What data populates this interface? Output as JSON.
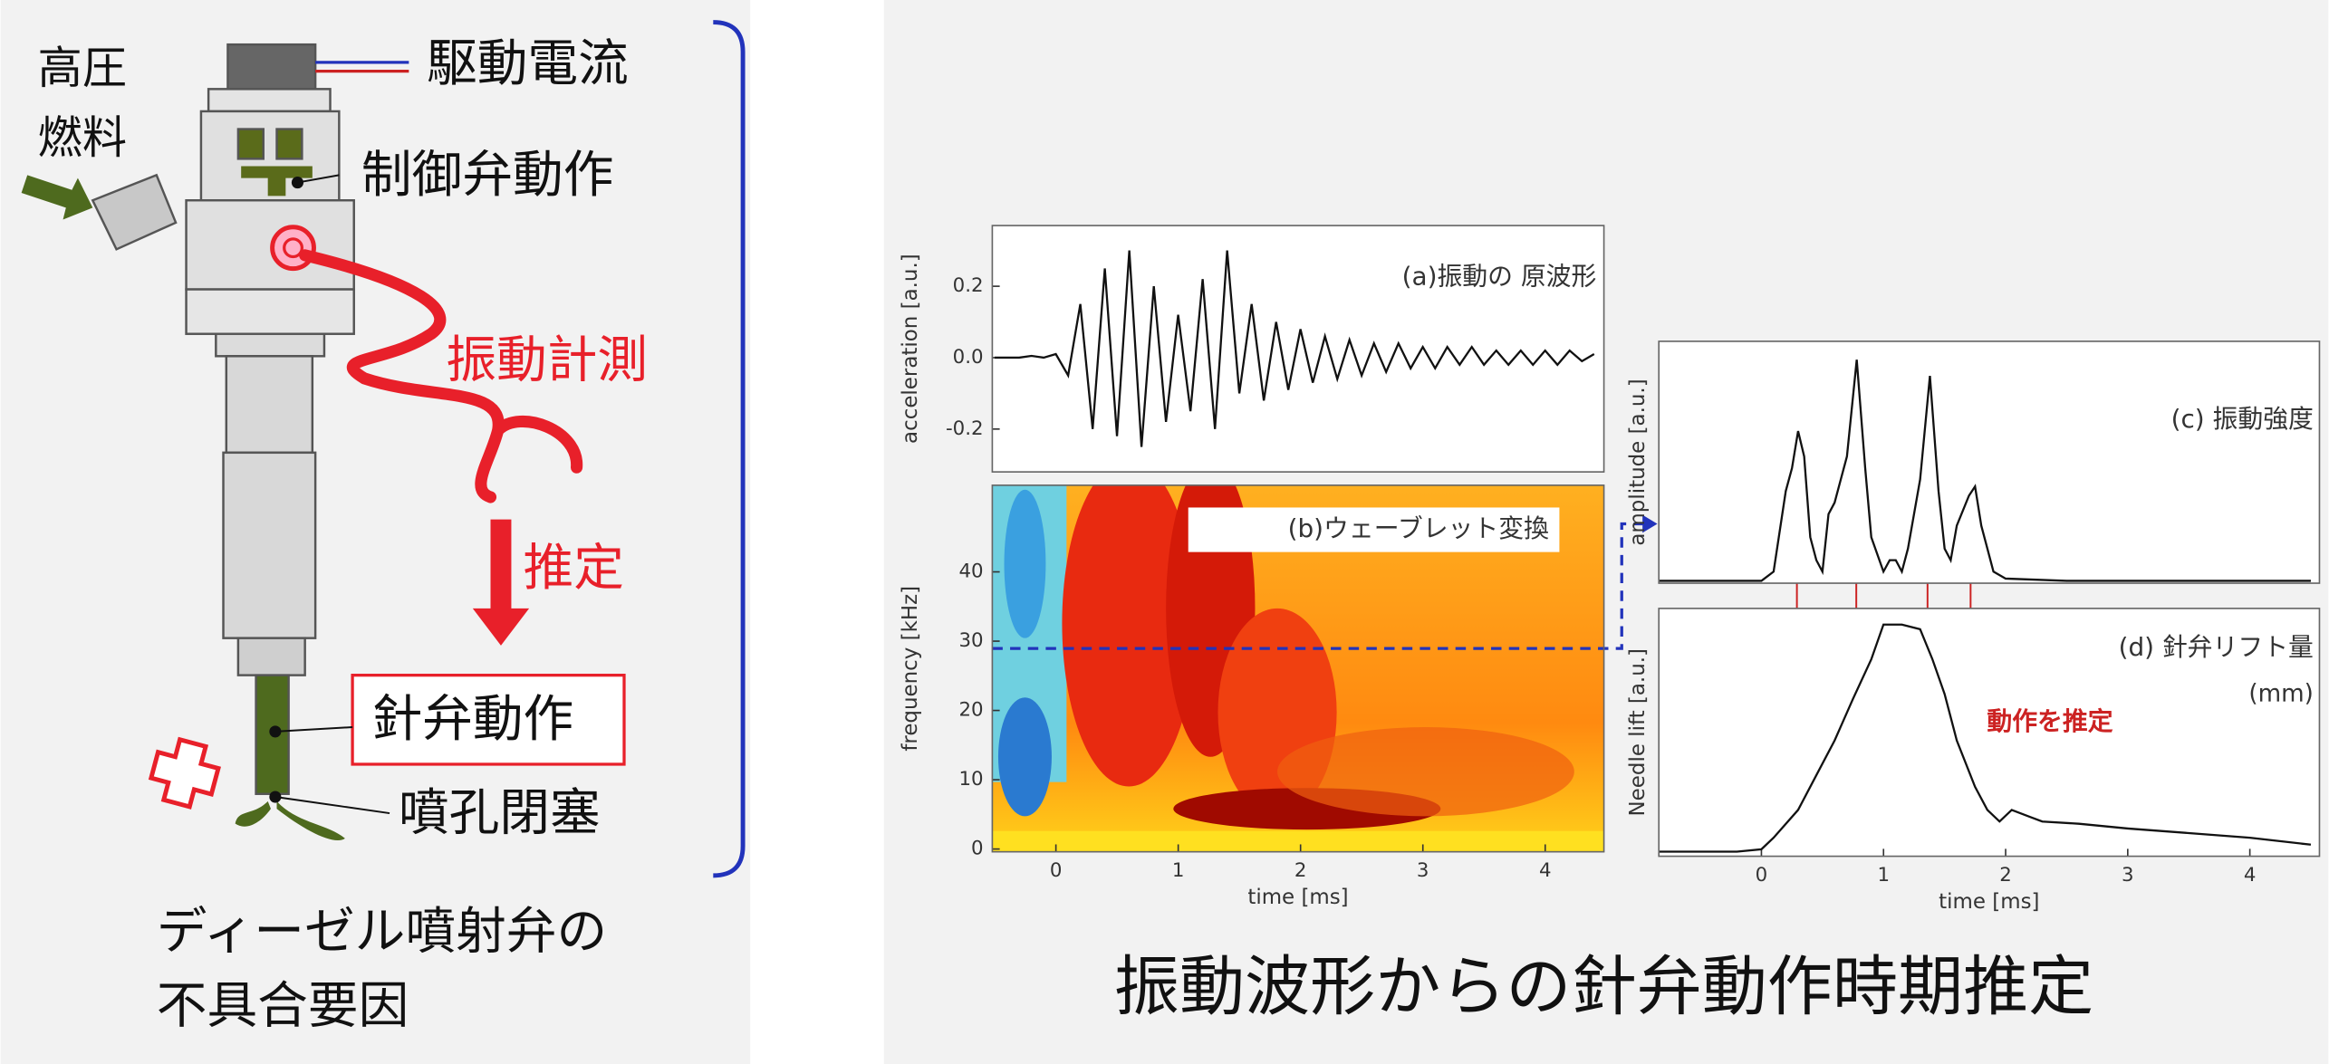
{
  "diagram": {
    "labels": {
      "fuel_1": "高圧",
      "fuel_2": "燃料",
      "drive_current": "駆動電流",
      "control_valve": "制御弁動作",
      "vibration": "振動計測",
      "estimate": "推定",
      "needle": "針弁動作",
      "nozzle": "噴孔閉塞"
    },
    "caption": [
      "ディーゼル噴射弁の",
      "不具合要因"
    ]
  },
  "figure_title": "振動波形からの針弁動作時期推定",
  "chart_data": [
    {
      "type": "line",
      "title": "(a)振動の 原波形",
      "ylabel": "acceleration [a.u.]",
      "color": "#111111",
      "xlim": [
        -0.52,
        4.48
      ],
      "ylim": [
        -0.32,
        0.37
      ],
      "yticks": [
        0.2,
        {
          "value": 0,
          "label": "0.0"
        },
        -0.2
      ],
      "x": [
        -0.5,
        -0.4,
        -0.3,
        -0.2,
        -0.1,
        0,
        0.1,
        0.2,
        0.3,
        0.4,
        0.5,
        0.6,
        0.7,
        0.8,
        0.9,
        1.0,
        1.1,
        1.2,
        1.3,
        1.4,
        1.5,
        1.6,
        1.7,
        1.8,
        1.9,
        2.0,
        2.1,
        2.2,
        2.3,
        2.4,
        2.5,
        2.6,
        2.7,
        2.8,
        2.9,
        3.0,
        3.1,
        3.2,
        3.3,
        3.4,
        3.5,
        3.6,
        3.7,
        3.8,
        3.9,
        4.0,
        4.1,
        4.2,
        4.3,
        4.4
      ],
      "values": [
        0,
        0,
        0,
        0.005,
        0,
        0.01,
        -0.05,
        0.15,
        -0.2,
        0.25,
        -0.22,
        0.3,
        -0.25,
        0.2,
        -0.18,
        0.12,
        -0.15,
        0.22,
        -0.2,
        0.3,
        -0.1,
        0.15,
        -0.12,
        0.1,
        -0.09,
        0.08,
        -0.07,
        0.06,
        -0.06,
        0.05,
        -0.05,
        0.04,
        -0.04,
        0.04,
        -0.03,
        0.03,
        -0.03,
        0.03,
        -0.02,
        0.03,
        -0.02,
        0.02,
        -0.02,
        0.02,
        -0.02,
        0.02,
        -0.02,
        0.02,
        -0.01,
        0.01
      ]
    },
    {
      "type": "spectrogram",
      "title": "(b)ウェーブレット変換",
      "xlabel": "time [ms]",
      "ylabel": "frequency [kHz]",
      "xlim": [
        -0.52,
        4.48
      ],
      "ylim": [
        -0.4,
        52.5
      ],
      "xticks": [
        0,
        1,
        2,
        3,
        4
      ],
      "yticks": [
        0,
        10,
        20,
        30,
        40
      ]
    },
    {
      "type": "line",
      "title": "(c) 振動強度",
      "ylabel": "amplitude [a.u.]",
      "color": "#111111",
      "xlim": [
        -0.84,
        4.57
      ],
      "ylim": [
        0,
        1.05
      ],
      "x": [
        -0.84,
        0,
        0.1,
        0.2,
        0.25,
        0.3,
        0.35,
        0.4,
        0.45,
        0.5,
        0.55,
        0.6,
        0.7,
        0.78,
        0.85,
        0.9,
        1.0,
        1.05,
        1.1,
        1.15,
        1.2,
        1.3,
        1.38,
        1.45,
        1.5,
        1.55,
        1.6,
        1.7,
        1.75,
        1.8,
        1.85,
        1.9,
        2.0,
        2.5,
        4.5
      ],
      "values": [
        0.01,
        0.01,
        0.05,
        0.4,
        0.5,
        0.66,
        0.55,
        0.2,
        0.1,
        0.05,
        0.3,
        0.35,
        0.55,
        0.97,
        0.5,
        0.2,
        0.05,
        0.1,
        0.1,
        0.05,
        0.15,
        0.45,
        0.9,
        0.4,
        0.15,
        0.1,
        0.25,
        0.38,
        0.42,
        0.25,
        0.15,
        0.05,
        0.02,
        0.01,
        0.01
      ]
    },
    {
      "type": "line",
      "title": "(d) 針弁リフト量",
      "annotations": [
        "(mm)",
        "動作を推定"
      ],
      "xlabel": "time [ms]",
      "ylabel": "Needle lift [a.u.]",
      "color": "#111111",
      "xlim": [
        -0.84,
        4.57
      ],
      "ylim": [
        0,
        1.07
      ],
      "xticks": [
        0,
        1,
        2,
        3,
        4
      ],
      "x": [
        -0.84,
        -0.2,
        0,
        0.1,
        0.3,
        0.45,
        0.6,
        0.75,
        0.9,
        1.0,
        1.15,
        1.3,
        1.4,
        1.5,
        1.6,
        1.75,
        1.85,
        1.95,
        2.05,
        2.2,
        2.3,
        2.6,
        3.0,
        3.5,
        4.0,
        4.5
      ],
      "values": [
        0.02,
        0.02,
        0.03,
        0.08,
        0.2,
        0.35,
        0.5,
        0.68,
        0.85,
        1.0,
        1.0,
        0.98,
        0.85,
        0.7,
        0.5,
        0.3,
        0.2,
        0.15,
        0.2,
        0.17,
        0.15,
        0.14,
        0.12,
        0.1,
        0.08,
        0.05
      ]
    }
  ]
}
